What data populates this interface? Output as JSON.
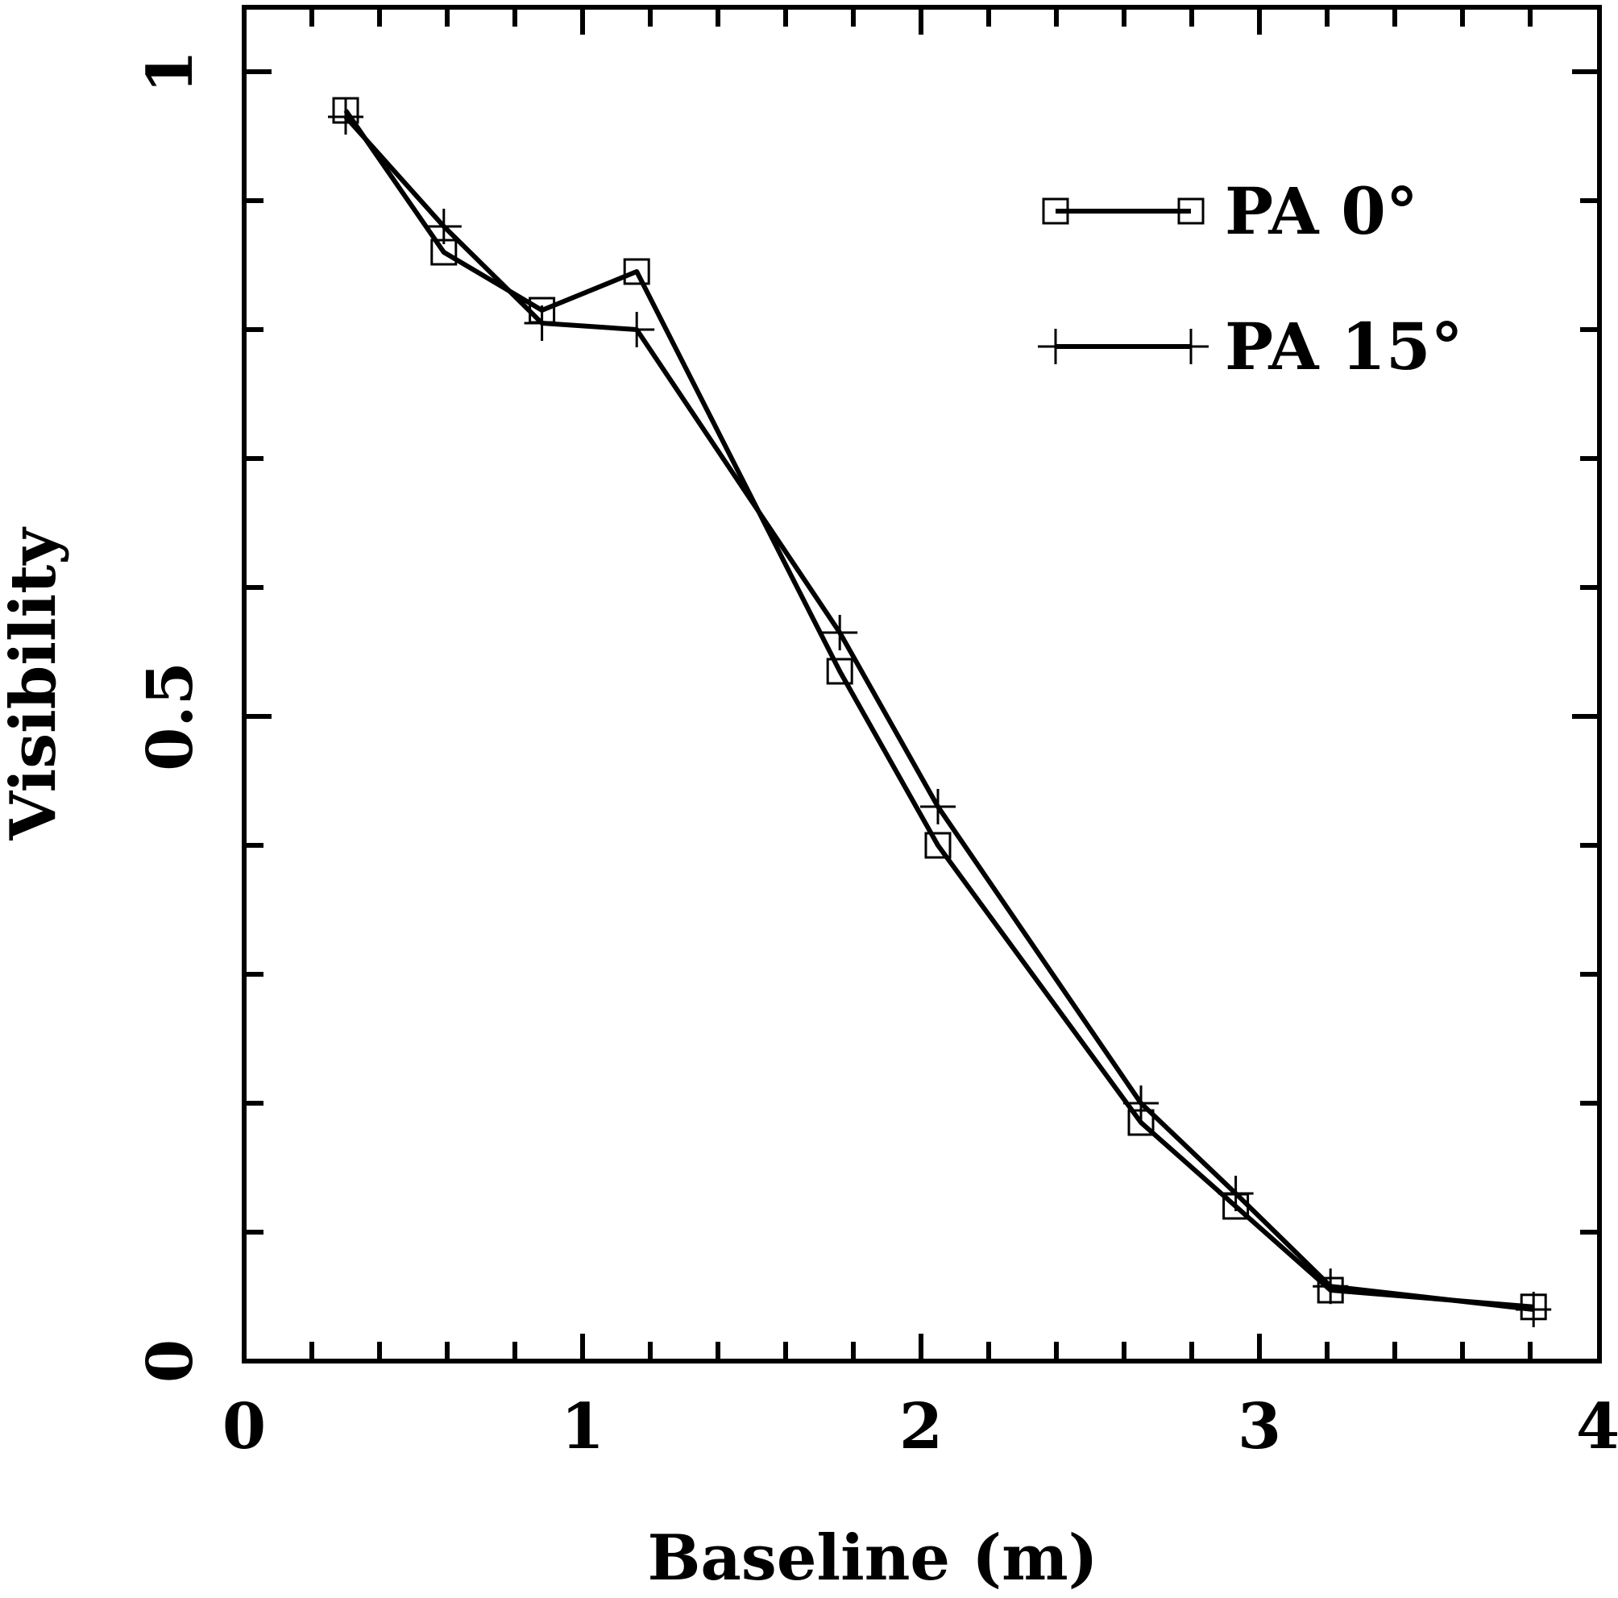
{
  "chart_data": {
    "type": "line",
    "xlabel": "Baseline (m)",
    "ylabel": "Visibility",
    "xlim": [
      0,
      4
    ],
    "ylim": [
      0,
      1.0
    ],
    "x_ticks": [
      "0",
      "1",
      "2",
      "3",
      "4"
    ],
    "y_ticks": [
      "0",
      "0.5",
      "1"
    ],
    "grid": false,
    "legend_position": "top-right",
    "series": [
      {
        "name": "PA 0°",
        "marker": "square",
        "x": [
          0.3,
          0.59,
          0.88,
          1.16,
          1.76,
          2.05,
          2.65,
          2.93,
          3.21,
          3.81
        ],
        "y": [
          0.97,
          0.86,
          0.815,
          0.845,
          0.535,
          0.4,
          0.185,
          0.12,
          0.055,
          0.042
        ]
      },
      {
        "name": "PA 15°",
        "marker": "plus",
        "x": [
          0.3,
          0.59,
          0.88,
          1.16,
          1.76,
          2.05,
          2.65,
          2.93,
          3.21,
          3.81
        ],
        "y": [
          0.965,
          0.88,
          0.805,
          0.8,
          0.565,
          0.43,
          0.2,
          0.13,
          0.058,
          0.04
        ]
      }
    ]
  }
}
